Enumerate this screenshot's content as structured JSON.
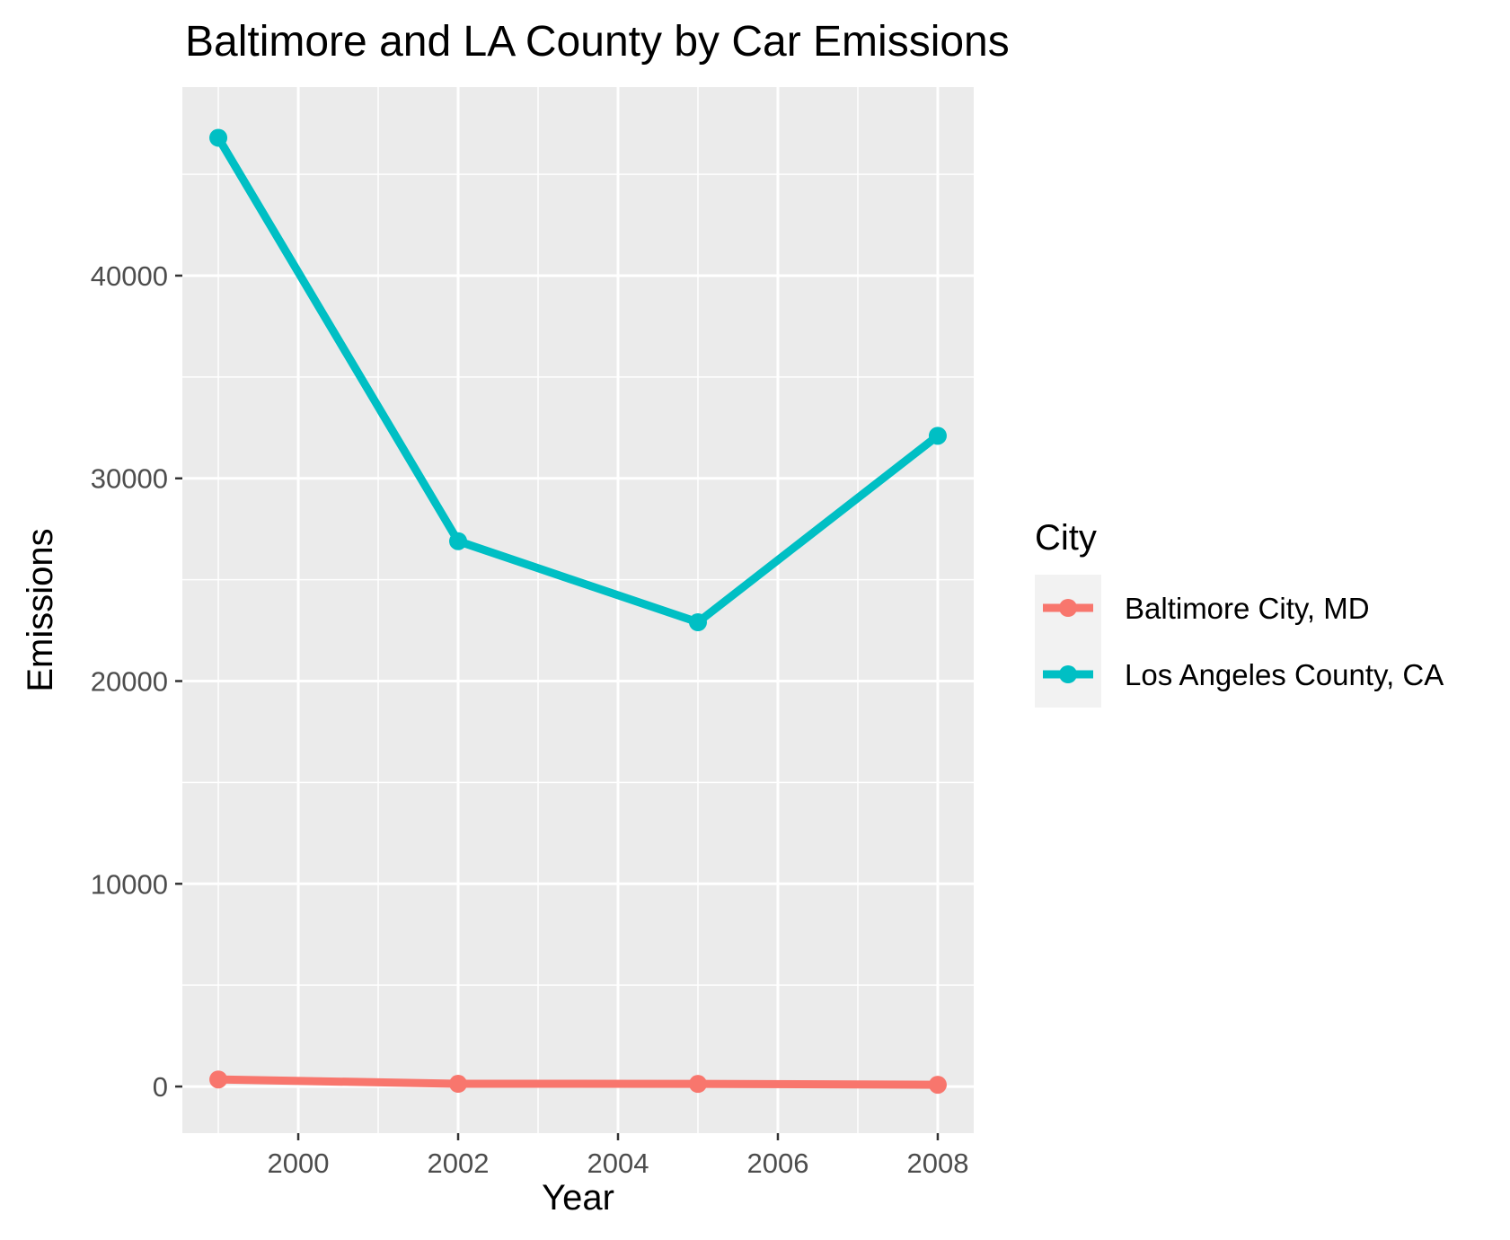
{
  "chart_data": {
    "type": "line",
    "title": "Baltimore and LA County by Car Emissions",
    "xlabel": "Year",
    "ylabel": "Emissions",
    "x": [
      1999,
      2002,
      2005,
      2008
    ],
    "xlim": [
      1998.55,
      2008.45
    ],
    "ylim": [
      -2300,
      49300
    ],
    "xticks": [
      2000,
      2002,
      2004,
      2006,
      2008
    ],
    "yticks": [
      0,
      10000,
      20000,
      30000,
      40000
    ],
    "grid": true,
    "legend_title": "City",
    "legend_position": "right",
    "series": [
      {
        "name": "Baltimore City, MD",
        "color": "#F8766D",
        "values": [
          347,
          134,
          130,
          88
        ]
      },
      {
        "name": "Los Angeles County, CA",
        "color": "#00BFC4",
        "values": [
          46800,
          26900,
          22900,
          32100
        ]
      }
    ]
  }
}
